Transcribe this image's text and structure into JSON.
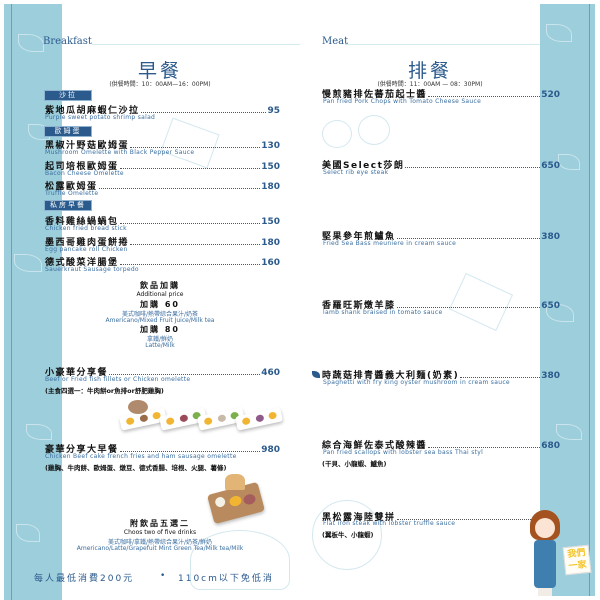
{
  "colors": {
    "strip": "#9dcedc",
    "accent": "#2b5a8c",
    "english": "#3a6ea0"
  },
  "left": {
    "section": "Breakfast",
    "title": "早餐",
    "hours": "(供餐時間：10：00AM—16：00PM)",
    "categories": [
      "沙拉",
      "歐姆蛋",
      "私房早餐"
    ],
    "items": [
      {
        "zh": "紫地瓜胡麻蝦仁沙拉",
        "en": "Purple sweet potato shrimp salad",
        "price": "95"
      },
      {
        "zh": "黑椒汁野菇歐姆蛋",
        "en": "Mushroom Omelette with Black Pepper Sauce",
        "price": "130"
      },
      {
        "zh": "起司培根歐姆蛋",
        "en": "Bacon Cheese Omelette",
        "price": "150"
      },
      {
        "zh": "松露歐姆蛋",
        "en": "Truffle Omelette",
        "price": "180"
      },
      {
        "zh": "香料雞絲蝸蝸包",
        "en": "Chicken fried bread stick",
        "price": "150"
      },
      {
        "zh": "墨西哥雞肉蛋餅捲",
        "en": "Egg pancake roll Chicken",
        "price": "180"
      },
      {
        "zh": "德式酸菜洋腸堡",
        "en": "Sauerkraut Sausage torpedo",
        "price": "160"
      }
    ],
    "drinks": {
      "title": "飲品加購",
      "en": "Additional price",
      "add60": "加購 60",
      "add60_zh": "美式咖啡/熱帶綜合果汁/奶茶",
      "add60_en": "Americano/Mixed Fruit Juice/Milk tea",
      "add80": "加購 80",
      "add80_zh": "拿鐵/鮮奶",
      "add80_en": "Latte/Milk"
    },
    "set1": {
      "zh": "小豪華分享餐",
      "en": "Beef or Fried fish fillets or Chicken omelette",
      "note": "(主食四選一：牛肉餅or魚排or舒肥雞胸)",
      "price": "460"
    },
    "set2": {
      "zh": "豪華分享大早餐",
      "en": "Chicken Beef cake french fries and ham sausage omelette",
      "note": "(雞胸、牛肉餅、歐姆蛋、燉豆、德式香腸、培根、火腿、薯條)",
      "price": "980"
    },
    "set_drinks": {
      "title": "附飲品五選二",
      "en": "Choos two of five drinks",
      "zh_list": "美式咖啡/拿鐵/熱帶綜合果汁/奶茶/鮮奶",
      "en_list": "Americano/Latte/Grapefuit Mint Green Tea/Milk tea/Milk"
    },
    "footer": {
      "min": "每人最低消費200元",
      "bullet": "•",
      "child": "110cm以下免低消"
    }
  },
  "right": {
    "section": "Meat",
    "title": "排餐",
    "hours": "(供餐時間：11：00AM — 08：30PM)",
    "items": [
      {
        "zh": "慢煎豬排佐蕃茄起士醬",
        "en": "Pan fried Pork Chops with Tomato Cheese Sauce",
        "price": "520"
      },
      {
        "zh": "美國Select莎朗",
        "en": "Select rib eye steak",
        "price": "650"
      },
      {
        "zh": "堅果參年煎鱸魚",
        "en": "Fried Sea Bass meuniere in cream sauce",
        "price": "380"
      },
      {
        "zh": "香羅旺斯燉羊膝",
        "en": "lamb shank braised in tomato sauce",
        "price": "650"
      },
      {
        "zh": "時蔬菇排青醬義大利麵(奶素)",
        "en": "Spaghetti with fry king oyster mushroom in cream sauce",
        "price": "380",
        "icon": "leaf-icon"
      },
      {
        "zh": "綜合海鮮佐泰式酸辣醬",
        "en": "Pan fried scallops with lobster sea bass Thai styl",
        "note": "(干貝、小龍蝦、鱸魚)",
        "price": "680"
      },
      {
        "zh": "黑松露海陸雙拼",
        "en": "Flat iron steak with lobster truffle sauce",
        "note": "(翼板牛、小龍蝦)"
      }
    ]
  },
  "mascot": {
    "sign": "我們一家"
  }
}
